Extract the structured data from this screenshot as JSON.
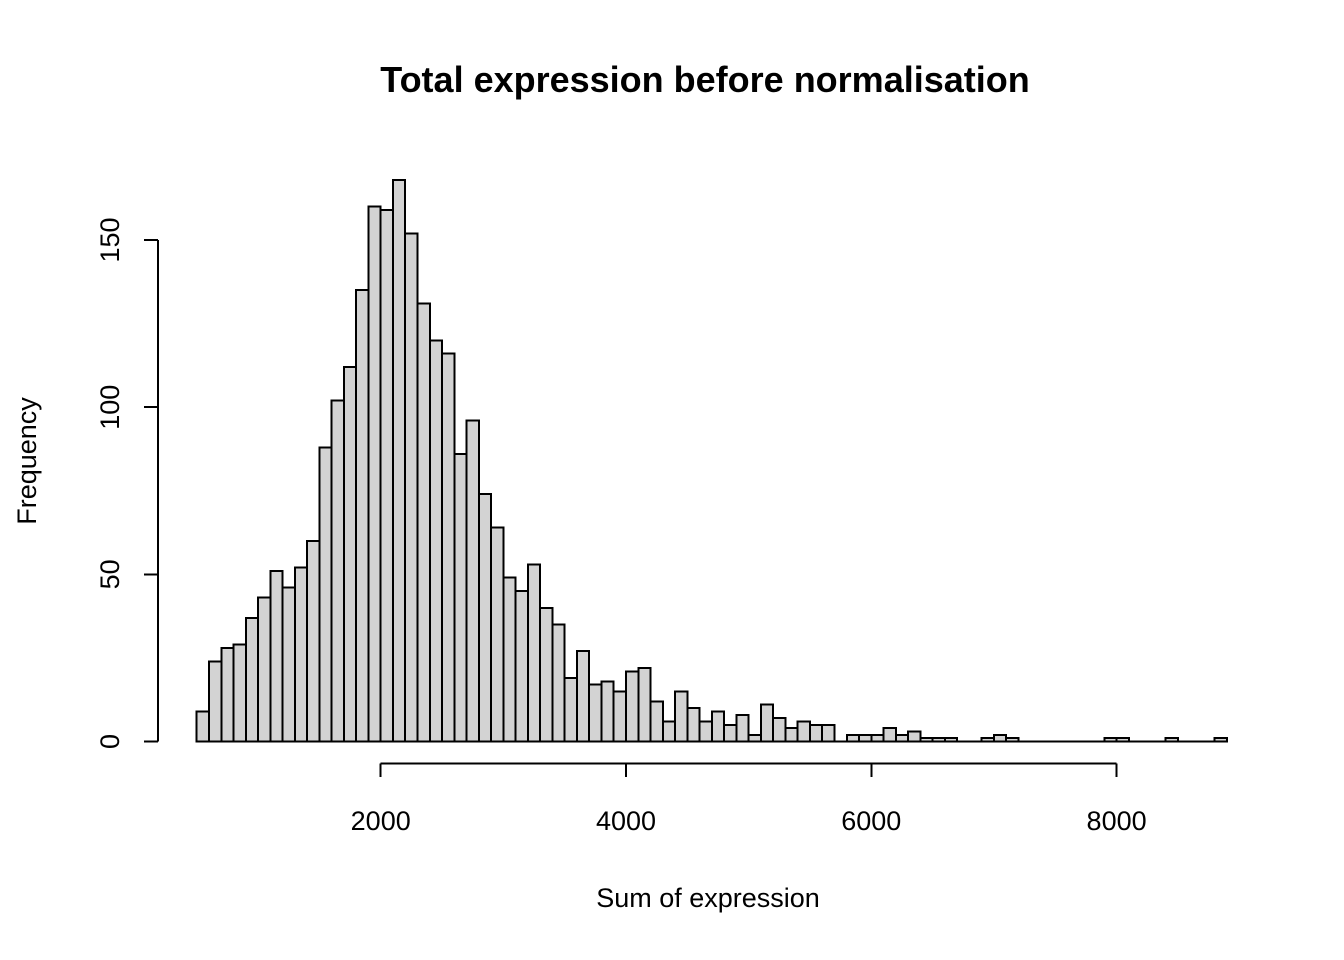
{
  "chart_data": {
    "type": "bar",
    "subtype": "histogram",
    "title": "Total expression before normalisation",
    "xlabel": "Sum of expression",
    "ylabel": "Frequency",
    "grid": "off",
    "legend": "none",
    "background_color": "#ffffff",
    "bar_fill_color": "#d3d3d3",
    "bar_border_color": "#000000",
    "axis_color": "#000000",
    "xlim": [
      500,
      8900
    ],
    "ylim": [
      0,
      168
    ],
    "x_ticks": [
      2000,
      4000,
      6000,
      8000
    ],
    "x_tick_labels": [
      "2000",
      "4000",
      "6000",
      "8000"
    ],
    "y_ticks": [
      0,
      50,
      100,
      150
    ],
    "y_tick_labels": [
      "0",
      "50",
      "100",
      "150"
    ],
    "bins": {
      "start": 500,
      "width": 100,
      "counts": [
        9,
        24,
        28,
        29,
        37,
        43,
        51,
        46,
        52,
        60,
        88,
        102,
        112,
        135,
        160,
        159,
        168,
        152,
        131,
        120,
        116,
        86,
        96,
        74,
        64,
        49,
        45,
        53,
        40,
        35,
        19,
        27,
        17,
        18,
        15,
        21,
        22,
        12,
        6,
        15,
        10,
        6,
        9,
        5,
        8,
        2,
        11,
        7,
        4,
        6,
        5,
        5,
        0,
        2,
        2,
        2,
        4,
        2,
        3,
        1,
        1,
        1,
        0,
        0,
        1,
        2,
        1,
        0,
        0,
        0,
        0,
        0,
        0,
        0,
        1,
        1,
        0,
        0,
        0,
        1,
        0,
        0,
        0,
        1
      ]
    }
  }
}
